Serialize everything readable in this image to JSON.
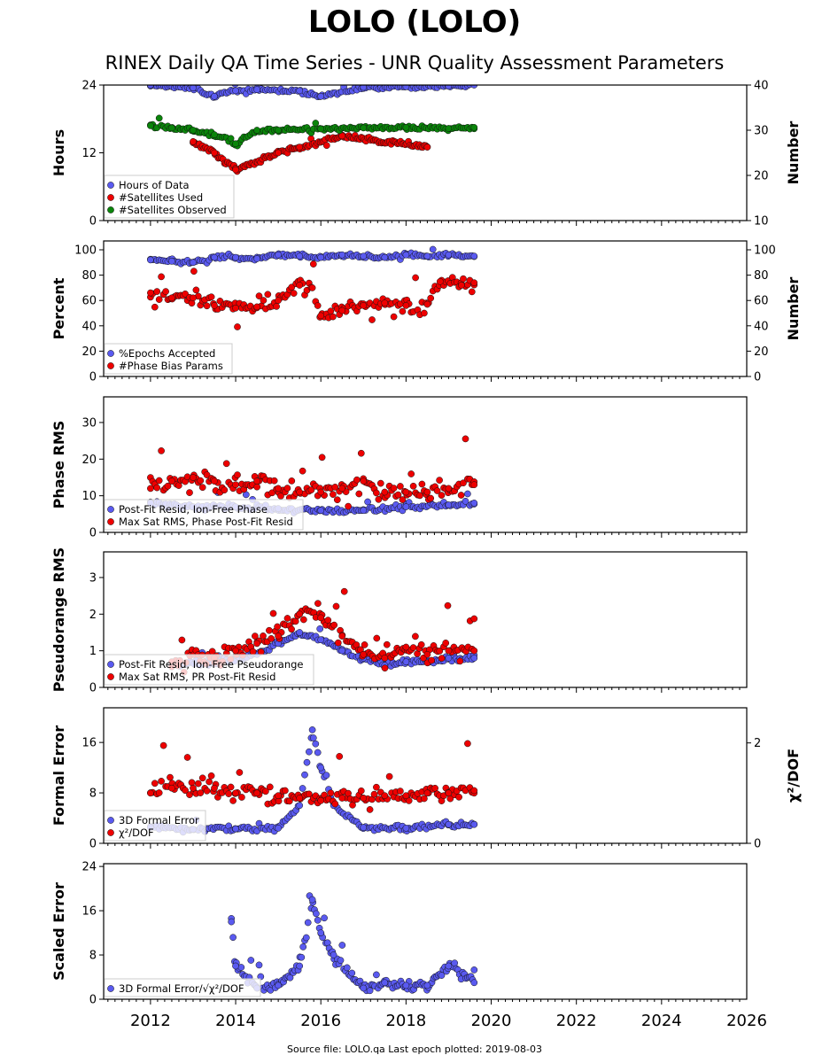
{
  "title": "LOLO (LOLO)",
  "subtitle": "RINEX Daily QA Time Series - UNR Quality Assessment Parameters",
  "source_prefix": "Source file: LOLO.qa",
  "last_epoch_label": "Last epoch plotted: 2019-08-03",
  "colors": {
    "blue": "#5a5af0",
    "red": "#ee0000",
    "green": "#0a850a",
    "edge": "#111111"
  },
  "chart_data": [
    {
      "type": "scatter",
      "ylabel": "Hours",
      "ylim": [
        0,
        24
      ],
      "yticks": [
        "0",
        "12",
        "24"
      ],
      "y2label": "Number",
      "y2lim": [
        10,
        40
      ],
      "y2ticks": [
        "10",
        "20",
        "30",
        "40"
      ],
      "legend_placement": "lower-left",
      "series": [
        {
          "name": "Hours of Data",
          "color": "blue",
          "axis": "left",
          "values": [
            [
              2012.0,
              24
            ],
            [
              2013.0,
              23.5
            ],
            [
              2013.5,
              22
            ],
            [
              2014.0,
              23
            ],
            [
              2014.5,
              23.2
            ],
            [
              2015.5,
              23
            ],
            [
              2016.0,
              22
            ],
            [
              2017.0,
              23.6
            ],
            [
              2018.0,
              23.7
            ],
            [
              2019.0,
              23.8
            ],
            [
              2019.6,
              24
            ]
          ]
        },
        {
          "name": "#Satellites Used",
          "color": "red",
          "axis": "left",
          "values": [
            [
              2013.0,
              14
            ],
            [
              2013.5,
              12
            ],
            [
              2014.0,
              9
            ],
            [
              2015.0,
              12
            ],
            [
              2015.5,
              13
            ],
            [
              2016.5,
              15
            ],
            [
              2018.5,
              13
            ]
          ]
        },
        {
          "name": "#Satellites Observed",
          "color": "green",
          "axis": "right",
          "values": [
            [
              2012.0,
              31
            ],
            [
              2012.5,
              30.5
            ],
            [
              2013.0,
              30
            ],
            [
              2013.5,
              29
            ],
            [
              2014.0,
              27
            ],
            [
              2014.5,
              30
            ],
            [
              2015.0,
              30
            ],
            [
              2016.0,
              30.3
            ],
            [
              2017.0,
              30.5
            ],
            [
              2018.0,
              30.6
            ],
            [
              2019.0,
              30.4
            ],
            [
              2019.6,
              30.6
            ]
          ]
        }
      ]
    },
    {
      "type": "scatter",
      "ylabel": "Percent",
      "ylim": [
        0,
        107
      ],
      "yticks": [
        "0",
        "20",
        "40",
        "60",
        "80",
        "100"
      ],
      "y2label": "Number",
      "y2lim": [
        0,
        107
      ],
      "y2ticks": [
        "0",
        "20",
        "40",
        "60",
        "80",
        "100"
      ],
      "legend_placement": "lower-left",
      "series": [
        {
          "name": "%Epochs Accepted",
          "color": "blue",
          "axis": "left",
          "values": [
            [
              2012.0,
              92
            ],
            [
              2012.5,
              91
            ],
            [
              2013.0,
              90
            ],
            [
              2013.5,
              94
            ],
            [
              2014.0,
              94
            ],
            [
              2014.5,
              93
            ],
            [
              2015.0,
              96
            ],
            [
              2015.5,
              95
            ],
            [
              2016.0,
              94
            ],
            [
              2016.5,
              96
            ],
            [
              2017.0,
              95
            ],
            [
              2017.5,
              94
            ],
            [
              2018.0,
              96
            ],
            [
              2018.5,
              95
            ],
            [
              2019.0,
              96
            ],
            [
              2019.6,
              95
            ]
          ]
        },
        {
          "name": "#Phase Bias Params",
          "color": "red",
          "axis": "right",
          "values": [
            [
              2012.0,
              66
            ],
            [
              2012.5,
              62
            ],
            [
              2013.0,
              62
            ],
            [
              2013.5,
              56
            ],
            [
              2014.0,
              54
            ],
            [
              2014.5,
              55
            ],
            [
              2015.0,
              60
            ],
            [
              2015.5,
              72
            ],
            [
              2015.8,
              70
            ],
            [
              2016.0,
              48
            ],
            [
              2016.5,
              52
            ],
            [
              2017.0,
              56
            ],
            [
              2017.5,
              58
            ],
            [
              2018.0,
              56
            ],
            [
              2018.5,
              57
            ],
            [
              2018.8,
              75
            ],
            [
              2019.3,
              72
            ],
            [
              2019.6,
              74
            ]
          ]
        }
      ]
    },
    {
      "type": "scatter",
      "ylabel": "Phase RMS",
      "ylim": [
        0,
        37
      ],
      "yticks": [
        "0",
        "10",
        "20",
        "30"
      ],
      "legend_placement": "lower-left",
      "series": [
        {
          "name": "Post-Fit Resid, Ion-Free Phase",
          "color": "blue",
          "axis": "left",
          "values": [
            [
              2012.0,
              8
            ],
            [
              2013.0,
              7
            ],
            [
              2014.0,
              7
            ],
            [
              2015.0,
              6.5
            ],
            [
              2016.0,
              6
            ],
            [
              2017.0,
              6
            ],
            [
              2018.0,
              7
            ],
            [
              2019.0,
              7.5
            ],
            [
              2019.6,
              8
            ]
          ]
        },
        {
          "name": "Max Sat RMS, Phase Post-Fit Resid",
          "color": "red",
          "axis": "left",
          "values": [
            [
              2012.0,
              12
            ],
            [
              2012.5,
              14
            ],
            [
              2013.0,
              15
            ],
            [
              2013.5,
              14
            ],
            [
              2014.0,
              13
            ],
            [
              2014.5,
              14
            ],
            [
              2015.0,
              12
            ],
            [
              2015.5,
              11
            ],
            [
              2016.0,
              11
            ],
            [
              2016.5,
              12
            ],
            [
              2017.0,
              14
            ],
            [
              2017.5,
              11
            ],
            [
              2018.0,
              11
            ],
            [
              2018.5,
              11
            ],
            [
              2019.0,
              12
            ],
            [
              2019.6,
              13
            ]
          ]
        }
      ]
    },
    {
      "type": "scatter",
      "ylabel": "Pseudorange RMS",
      "ylim": [
        0,
        3.7
      ],
      "yticks": [
        "0",
        "1",
        "2",
        "3"
      ],
      "legend_placement": "lower-left",
      "series": [
        {
          "name": "Post-Fit Resid, Ion-Free Pseudorange",
          "color": "blue",
          "axis": "left",
          "values": [
            [
              2012.5,
              0.6
            ],
            [
              2013.5,
              0.7
            ],
            [
              2014.5,
              0.9
            ],
            [
              2015.0,
              1.2
            ],
            [
              2015.5,
              1.5
            ],
            [
              2016.0,
              1.3
            ],
            [
              2016.5,
              1.0
            ],
            [
              2017.0,
              0.8
            ],
            [
              2017.5,
              0.6
            ],
            [
              2018.0,
              0.7
            ],
            [
              2018.5,
              0.7
            ],
            [
              2019.0,
              0.8
            ],
            [
              2019.6,
              0.8
            ]
          ]
        },
        {
          "name": "Max Sat RMS, PR Post-Fit Resid",
          "color": "red",
          "axis": "left",
          "values": [
            [
              2012.5,
              0.7
            ],
            [
              2013.5,
              0.8
            ],
            [
              2014.0,
              1.0
            ],
            [
              2014.5,
              1.2
            ],
            [
              2015.0,
              1.4
            ],
            [
              2015.5,
              2.0
            ],
            [
              2016.0,
              1.9
            ],
            [
              2016.5,
              1.4
            ],
            [
              2017.0,
              0.9
            ],
            [
              2017.5,
              0.8
            ],
            [
              2018.0,
              1.1
            ],
            [
              2018.5,
              0.9
            ],
            [
              2019.0,
              1.0
            ],
            [
              2019.6,
              1.0
            ]
          ]
        }
      ]
    },
    {
      "type": "scatter",
      "ylabel": "Formal Error",
      "ylim": [
        0,
        21.5
      ],
      "yticks": [
        "0",
        "8",
        "16"
      ],
      "y2label": "χ²/DOF",
      "y2lim": [
        0,
        2.7
      ],
      "y2ticks": [
        "0",
        "2"
      ],
      "legend_placement": "lower-left",
      "series": [
        {
          "name": "3D Formal Error",
          "color": "blue",
          "axis": "left",
          "values": [
            [
              2012.0,
              2.5
            ],
            [
              2013.0,
              2.2
            ],
            [
              2014.0,
              2.3
            ],
            [
              2015.0,
              2.4
            ],
            [
              2015.5,
              6
            ],
            [
              2015.8,
              18
            ],
            [
              2016.0,
              12
            ],
            [
              2016.3,
              6
            ],
            [
              2017.0,
              2.5
            ],
            [
              2018.0,
              2.4
            ],
            [
              2019.0,
              3
            ],
            [
              2019.6,
              3
            ]
          ]
        },
        {
          "name": "χ²/DOF",
          "color": "red",
          "axis": "right",
          "values": [
            [
              2012.0,
              1.0
            ],
            [
              2012.5,
              1.1
            ],
            [
              2013.0,
              1.1
            ],
            [
              2013.5,
              1.1
            ],
            [
              2014.0,
              1.0
            ],
            [
              2014.5,
              1.0
            ],
            [
              2015.0,
              0.95
            ],
            [
              2015.5,
              0.9
            ],
            [
              2016.0,
              0.85
            ],
            [
              2016.5,
              0.9
            ],
            [
              2017.0,
              0.9
            ],
            [
              2017.5,
              0.95
            ],
            [
              2018.0,
              0.95
            ],
            [
              2018.5,
              1.0
            ],
            [
              2019.0,
              1.0
            ],
            [
              2019.6,
              1.05
            ]
          ]
        }
      ]
    },
    {
      "type": "scatter",
      "ylabel": "Scaled Error",
      "ylim": [
        0,
        24.5
      ],
      "yticks": [
        "0",
        "8",
        "16",
        "24"
      ],
      "legend_placement": "lower-left",
      "xlim": [
        2010.9,
        2026
      ],
      "xticks": [
        "2012",
        "2014",
        "2016",
        "2018",
        "2020",
        "2022",
        "2024",
        "2026"
      ],
      "series": [
        {
          "name": "3D Formal Error/√χ²/DOF",
          "color": "blue",
          "axis": "left",
          "values": [
            [
              2013.9,
              14
            ],
            [
              2014.0,
              6
            ],
            [
              2014.5,
              2
            ],
            [
              2015.0,
              2.5
            ],
            [
              2015.5,
              6
            ],
            [
              2015.8,
              18
            ],
            [
              2016.0,
              12
            ],
            [
              2016.3,
              8
            ],
            [
              2017.0,
              2
            ],
            [
              2017.5,
              3
            ],
            [
              2018.0,
              2.5
            ],
            [
              2018.5,
              2.5
            ],
            [
              2019.0,
              6
            ],
            [
              2019.6,
              3
            ]
          ]
        }
      ]
    }
  ]
}
